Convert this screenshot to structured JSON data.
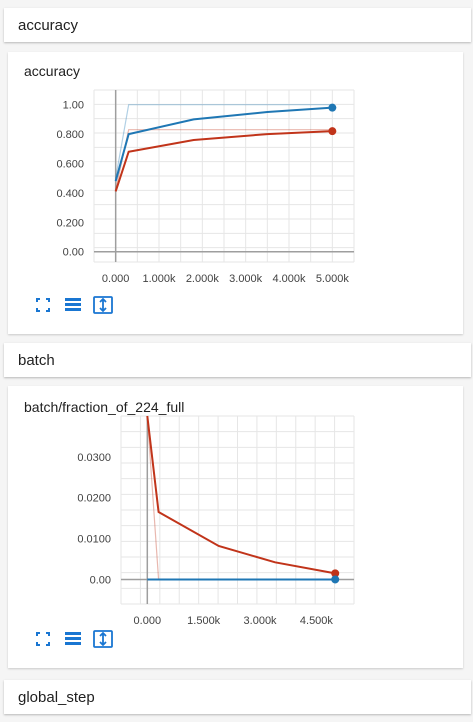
{
  "sections": {
    "accuracy": {
      "label": "accuracy"
    },
    "batch": {
      "label": "batch"
    },
    "global_step": {
      "label": "global_step"
    }
  },
  "icons": {
    "expand": "fullscreen-icon",
    "data": "list-icon",
    "fit": "fit-domain-icon"
  },
  "colors": {
    "blue": "#1f77b4",
    "red": "#c1341a",
    "icon": "#1976d2"
  },
  "chart_data": [
    {
      "type": "line",
      "title": "accuracy",
      "xlim": [
        -500,
        5500
      ],
      "ylim": [
        -0.07,
        1.1
      ],
      "xticks": [
        0,
        1000,
        2000,
        3000,
        4000,
        5000
      ],
      "xtick_labels": [
        "0.000",
        "1.000k",
        "2.000k",
        "3.000k",
        "4.000k",
        "5.000k"
      ],
      "yticks": [
        0,
        0.2,
        0.4,
        0.6,
        0.8,
        1.0
      ],
      "ytick_labels": [
        "0.00",
        "0.200",
        "0.400",
        "0.600",
        "0.800",
        "1.00"
      ],
      "grid": true,
      "series": [
        {
          "color": "blue",
          "smoothed": true,
          "x": [
            0,
            300,
            1800,
            3500,
            5000
          ],
          "y": [
            0.48,
            0.8,
            0.9,
            0.95,
            0.98
          ]
        },
        {
          "color": "red",
          "smoothed": true,
          "x": [
            0,
            300,
            1800,
            3500,
            5000
          ],
          "y": [
            0.41,
            0.68,
            0.76,
            0.8,
            0.82
          ]
        },
        {
          "color": "blue",
          "smoothed": false,
          "x": [
            0,
            300,
            5000
          ],
          "y": [
            0.5,
            1.0,
            1.0
          ]
        },
        {
          "color": "red",
          "smoothed": false,
          "x": [
            0,
            300,
            5000
          ],
          "y": [
            0.42,
            0.83,
            0.83
          ]
        }
      ]
    },
    {
      "type": "line",
      "title": "batch/fraction_of_224_full",
      "xlim": [
        -700,
        5500
      ],
      "ylim": [
        -0.006,
        0.04
      ],
      "xticks": [
        0,
        1500,
        3000,
        4500
      ],
      "xtick_labels": [
        "0.000",
        "1.500k",
        "3.000k",
        "4.500k"
      ],
      "yticks": [
        0,
        0.01,
        0.02,
        0.03
      ],
      "ytick_labels": [
        "0.00",
        "0.0100",
        "0.0200",
        "0.0300"
      ],
      "grid": true,
      "series": [
        {
          "color": "red",
          "smoothed": true,
          "x": [
            0,
            300,
            1900,
            3400,
            5000
          ],
          "y": [
            0.045,
            0.0165,
            0.0082,
            0.0042,
            0.0015
          ]
        },
        {
          "color": "blue",
          "smoothed": true,
          "x": [
            0,
            5000
          ],
          "y": [
            0.0,
            0.0
          ]
        },
        {
          "color": "red",
          "smoothed": false,
          "x": [
            0,
            300,
            5000
          ],
          "y": [
            0.045,
            0.0,
            0.0
          ]
        }
      ]
    }
  ]
}
